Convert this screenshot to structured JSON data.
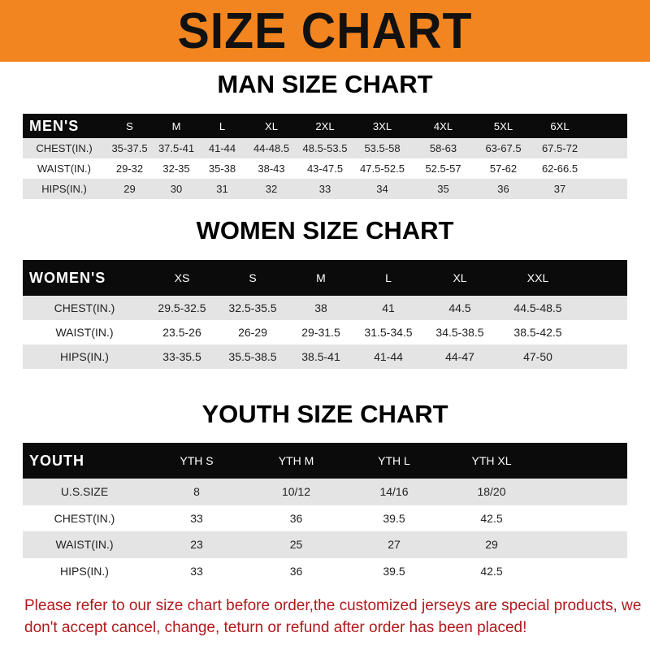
{
  "banner_title": "SIZE CHART",
  "men": {
    "title": "MAN SIZE CHART",
    "header": "MEN'S",
    "sizes": [
      "S",
      "M",
      "L",
      "XL",
      "2XL",
      "3XL",
      "4XL",
      "5XL",
      "6XL"
    ],
    "rows": [
      {
        "label": "CHEST(IN.)",
        "values": [
          "35-37.5",
          "37.5-41",
          "41-44",
          "44-48.5",
          "48.5-53.5",
          "53.5-58",
          "58-63",
          "63-67.5",
          "67.5-72"
        ]
      },
      {
        "label": "WAIST(IN.)",
        "values": [
          "29-32",
          "32-35",
          "35-38",
          "38-43",
          "43-47.5",
          "47.5-52.5",
          "52.5-57",
          "57-62",
          "62-66.5"
        ]
      },
      {
        "label": "HIPS(IN.)",
        "values": [
          "29",
          "30",
          "31",
          "32",
          "33",
          "34",
          "35",
          "36",
          "37"
        ]
      }
    ]
  },
  "women": {
    "title": "WOMEN SIZE CHART",
    "header": "WOMEN'S",
    "sizes": [
      "XS",
      "S",
      "M",
      "L",
      "XL",
      "XXL"
    ],
    "rows": [
      {
        "label": "CHEST(IN.)",
        "values": [
          "29.5-32.5",
          "32.5-35.5",
          "38",
          "41",
          "44.5",
          "44.5-48.5"
        ]
      },
      {
        "label": "WAIST(IN.)",
        "values": [
          "23.5-26",
          "26-29",
          "29-31.5",
          "31.5-34.5",
          "34.5-38.5",
          "38.5-42.5"
        ]
      },
      {
        "label": "HIPS(IN.)",
        "values": [
          "33-35.5",
          "35.5-38.5",
          "38.5-41",
          "41-44",
          "44-47",
          "47-50"
        ]
      }
    ]
  },
  "youth": {
    "title": "YOUTH SIZE CHART",
    "header": "YOUTH",
    "sizes": [
      "YTH S",
      "YTH M",
      "YTH L",
      "YTH XL"
    ],
    "rows": [
      {
        "label": "U.S.SIZE",
        "values": [
          "8",
          "10/12",
          "14/16",
          "18/20"
        ]
      },
      {
        "label": "CHEST(IN.)",
        "values": [
          "33",
          "36",
          "39.5",
          "42.5"
        ]
      },
      {
        "label": "WAIST(IN.)",
        "values": [
          "23",
          "25",
          "27",
          "29"
        ]
      },
      {
        "label": "HIPS(IN.)",
        "values": [
          "33",
          "36",
          "39.5",
          "42.5"
        ]
      }
    ]
  },
  "note": "Please refer to our size chart before order,the customized jerseys are special products, we don't accept cancel, change, teturn or refund after order has been placed!",
  "colors": {
    "banner": "#f2851f",
    "header_row": "#0b0b0b",
    "stripe": "#e4e4e4",
    "note": "#b2191d"
  }
}
